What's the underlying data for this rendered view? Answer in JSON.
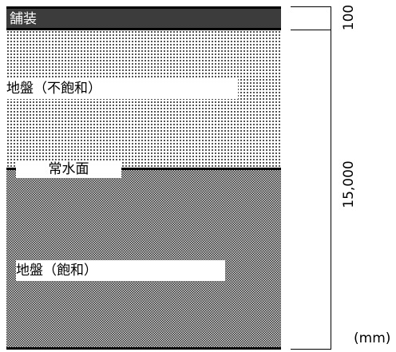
{
  "layers": {
    "pavement": "舗装",
    "unsaturated": "地盤（不飽和）",
    "water_table": "常水面",
    "saturated": "地盤（飽和）"
  },
  "dimensions": {
    "pavement_thickness": "100",
    "ground_depth": "15,000",
    "unit": "(mm)"
  },
  "colors": {
    "pavement_fill": "#3c3c3c",
    "line": "#000000",
    "label_background": "#ffffff"
  }
}
